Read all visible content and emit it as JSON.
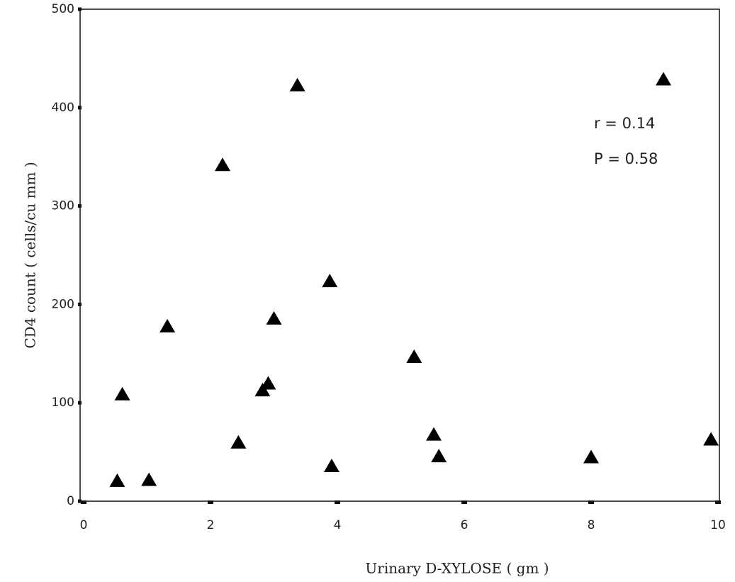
{
  "chart_data": {
    "type": "scatter",
    "x_label": "Urinary D-XYLOSE ( gm )",
    "y_label": "CD4 count ( cells/cu mm )",
    "annotations": [
      "r = 0.14",
      "P = 0.58"
    ],
    "color": "#000000",
    "x": [
      0.53,
      0.61,
      1.03,
      1.32,
      2.19,
      2.44,
      2.82,
      2.91,
      3.0,
      3.37,
      3.88,
      3.91,
      5.21,
      5.52,
      5.6,
      8.0,
      9.14,
      9.89
    ],
    "values": [
      21,
      109,
      22,
      178,
      342,
      60,
      113,
      120,
      186,
      423,
      224,
      36,
      147,
      68,
      46,
      45,
      429,
      63
    ],
    "xlim": [
      0,
      10
    ],
    "xticks": [
      0,
      2,
      4,
      6,
      8,
      10
    ],
    "ylim": [
      0,
      500
    ],
    "yticks": [
      0,
      100,
      200,
      300,
      400,
      500
    ]
  }
}
